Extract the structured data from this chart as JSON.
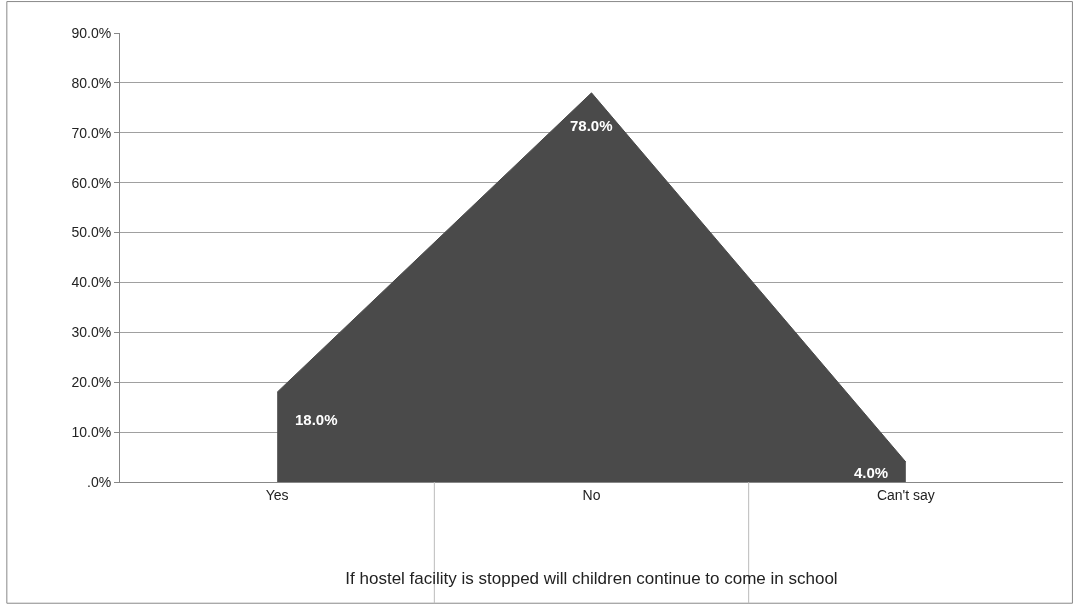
{
  "chart_data": {
    "type": "area",
    "xlabel": "If hostel facility is stopped will children continue to come in school",
    "categories": [
      "Yes",
      "No",
      "Can't say"
    ],
    "values": [
      18,
      78,
      4
    ],
    "value_labels": [
      "18.0%",
      "78.0%",
      "4.0%"
    ],
    "color": "#4a4a4a",
    "ylim": [
      0,
      90
    ],
    "yticks": [
      {
        "value": 0,
        "label": ".0%"
      },
      {
        "value": 10,
        "label": "10.0%"
      },
      {
        "value": 20,
        "label": "20.0%"
      },
      {
        "value": 30,
        "label": "30.0%"
      },
      {
        "value": 40,
        "label": "40.0%"
      },
      {
        "value": 50,
        "label": "50.0%"
      },
      {
        "value": 60,
        "label": "60.0%"
      },
      {
        "value": 70,
        "label": "70.0%"
      },
      {
        "value": 80,
        "label": "80.0%"
      },
      {
        "value": 90,
        "label": "90.0%"
      }
    ],
    "grid": "y"
  }
}
